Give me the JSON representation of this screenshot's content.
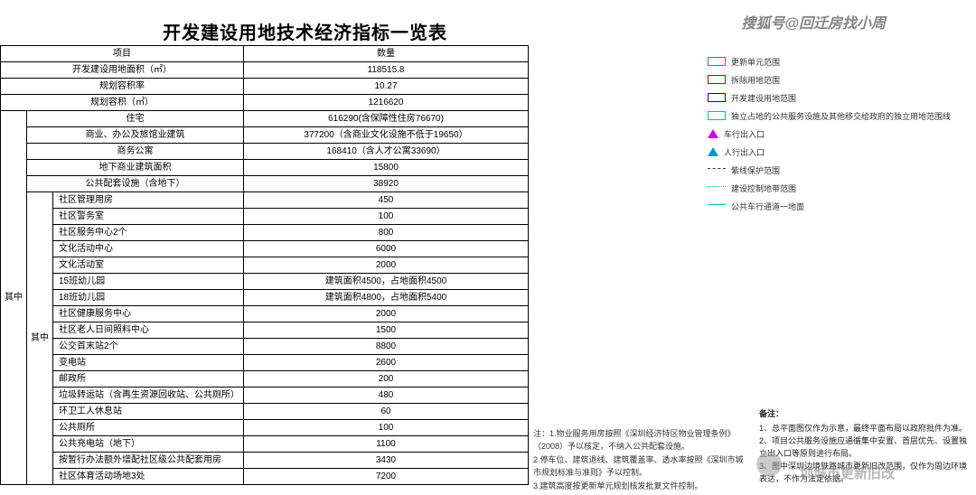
{
  "title": "开发建设用地技术经济指标一览表",
  "watermark": "搜狐号@回迁房找小周",
  "sub_watermark": "圳城市更新旧改",
  "header": {
    "p": "项目",
    "q": "数量"
  },
  "summary": [
    {
      "p": "开发建设用地面积（㎡）",
      "v": "118515.8"
    },
    {
      "p": "规划容积率",
      "v": "10.27"
    },
    {
      "p": "规划容积（㎡）",
      "v": "1216620"
    }
  ],
  "group1_label": "其中",
  "group1": [
    {
      "p": "住宅",
      "v": "616290(含保障性住房76670)"
    },
    {
      "p": "商业、办公及旅馆业建筑",
      "v": "377200（含商业文化设施不低于19650）"
    },
    {
      "p": "商务公寓",
      "v": "168410（含人才公寓33690）"
    },
    {
      "p": "地下商业建筑面积",
      "v": "15800"
    },
    {
      "p": "公共配套设施（含地下）",
      "v": "38920"
    }
  ],
  "group2_label": "其中",
  "group2": [
    {
      "p": "社区管理用房",
      "v": "450"
    },
    {
      "p": "社区警务室",
      "v": "100"
    },
    {
      "p": "社区服务中心2个",
      "v": "800"
    },
    {
      "p": "文化活动中心",
      "v": "6000"
    },
    {
      "p": "文化活动室",
      "v": "2000"
    },
    {
      "p": "15班幼儿园",
      "v": "建筑面积4500，占地面积4500"
    },
    {
      "p": "18班幼儿园",
      "v": "建筑面积4800，占地面积5400"
    },
    {
      "p": "社区健康服务中心",
      "v": "2000"
    },
    {
      "p": "社区老人日间照料中心",
      "v": "1500"
    },
    {
      "p": "公交首末站2个",
      "v": "8800"
    },
    {
      "p": "变电站",
      "v": "2600"
    },
    {
      "p": "邮政所",
      "v": "200"
    },
    {
      "p": "垃圾转运站（含再生资源回收站、公共厕所）",
      "v": "480"
    },
    {
      "p": "环卫工人休息站",
      "v": "60"
    },
    {
      "p": "公共厕所",
      "v": "100"
    },
    {
      "p": "公共充电站（地下）",
      "v": "1100"
    },
    {
      "p": "按暂行办法额外增配社区级公共配套用房",
      "v": "3430"
    },
    {
      "p": "社区体育活动场地3处",
      "v": "7200"
    }
  ],
  "notes_a": [
    "注：1.物业服务用房按照《深圳经济特区物业管理条例》（2008）予以核定，不纳入公共配套设施。",
    "2.停车位、建筑退线、建筑覆盖率、透水率按照《深圳市城市规划标准与准则》予以控制。",
    "3.建筑高度按更新单元规划核发批复文件控制。"
  ],
  "legend": [
    {
      "t": "更新单元范围",
      "c": "sw sw-pink"
    },
    {
      "t": "拆除用地范围",
      "c": "sw sw-red"
    },
    {
      "t": "开发建设用地范围",
      "c": "sw sw-blue"
    },
    {
      "t": "独立占地的公共服务设施及其他移交给政府的独立用地范围线",
      "c": "sw sw-teal"
    },
    {
      "t": "车行出入口",
      "c": "sw-tri"
    },
    {
      "t": "人行出入口",
      "c": "sw-tri2"
    },
    {
      "t": "紫线保护范围",
      "c": "sw sw-dash"
    },
    {
      "t": "建设控制地带范围",
      "c": "sw sw-dot"
    },
    {
      "t": "公共车行通道一地面",
      "c": "sw sw-line"
    }
  ],
  "remark": {
    "hd": "备注：",
    "items": [
      "1、总平面图仅作为示意，最终平面布局以政府批件为准。",
      "2、项目公共服务设施应通循集中安置、首层优先、设置独立出入口等原则进行布局。",
      "3、图中深圳边境铁路城市更新旧改范围，仅作为周边环境表达，不作为法定依据。"
    ]
  }
}
